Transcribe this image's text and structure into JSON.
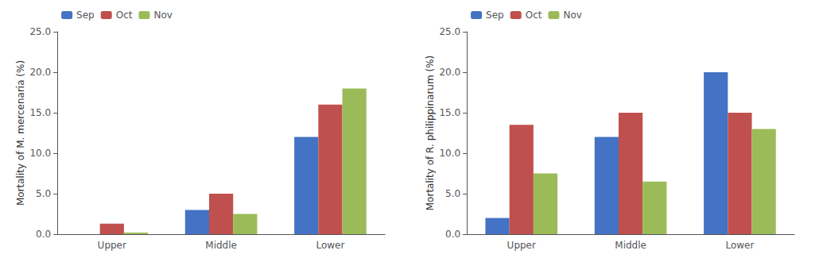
{
  "chart_data": [
    {
      "type": "bar",
      "ylabel": "Mortality of M. mercenaria (%)",
      "categories": [
        "Upper",
        "Middle",
        "Lower"
      ],
      "series": [
        {
          "name": "Sep",
          "color": "#4472C4",
          "values": [
            0.0,
            3.0,
            12.0
          ]
        },
        {
          "name": "Oct",
          "color": "#C0504D",
          "values": [
            1.3,
            5.0,
            16.0
          ]
        },
        {
          "name": "Nov",
          "color": "#9BBB59",
          "values": [
            0.2,
            2.5,
            18.0
          ]
        }
      ],
      "ylim": [
        0,
        25
      ],
      "yticks": [
        {
          "value": 0,
          "label": "0.0"
        },
        {
          "value": 5,
          "label": "5.0"
        },
        {
          "value": 10,
          "label": "10.0"
        },
        {
          "value": 15,
          "label": "15.0"
        },
        {
          "value": 20,
          "label": "20.0"
        },
        {
          "value": 25,
          "label": "25.0"
        }
      ],
      "grid": false,
      "legend": "upper left"
    },
    {
      "type": "bar",
      "ylabel": "Mortality of R. philippinarum (%)",
      "categories": [
        "Upper",
        "Middle",
        "Lower"
      ],
      "series": [
        {
          "name": "Sep",
          "color": "#4472C4",
          "values": [
            2.0,
            12.0,
            20.0
          ]
        },
        {
          "name": "Oct",
          "color": "#C0504D",
          "values": [
            13.5,
            15.0,
            15.0
          ]
        },
        {
          "name": "Nov",
          "color": "#9BBB59",
          "values": [
            7.5,
            6.5,
            13.0
          ]
        }
      ],
      "ylim": [
        0,
        25
      ],
      "yticks": [
        {
          "value": 0,
          "label": "0.0"
        },
        {
          "value": 5,
          "label": "5.0"
        },
        {
          "value": 10,
          "label": "10.0"
        },
        {
          "value": 15,
          "label": "15.0"
        },
        {
          "value": 20,
          "label": "20.0"
        },
        {
          "value": 25,
          "label": "25.0"
        }
      ],
      "grid": false,
      "legend": "upper left"
    }
  ]
}
